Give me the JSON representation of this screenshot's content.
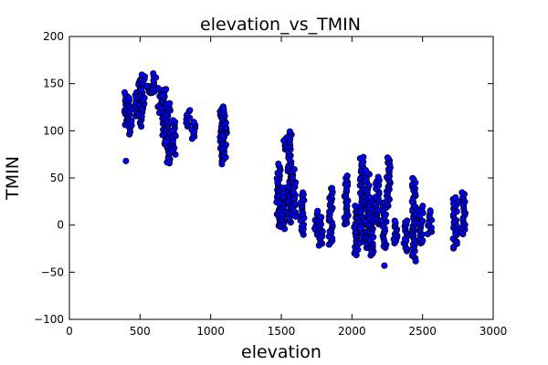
{
  "chart_data": {
    "type": "scatter",
    "title": "elevation_vs_TMIN",
    "xlabel": "elevation",
    "ylabel": "TMIN",
    "xlim": [
      0,
      3000
    ],
    "ylim": [
      -100,
      200
    ],
    "xticks": [
      0,
      500,
      1000,
      1500,
      2000,
      2500,
      3000
    ],
    "yticks": [
      -100,
      -50,
      0,
      50,
      100,
      150,
      200
    ],
    "grid": false,
    "marker_color": "#0000ff",
    "marker_edge_color": "#000000",
    "clusters": [
      {
        "x": 400,
        "ymin": 106,
        "ymax": 140,
        "extra": [
          68
        ]
      },
      {
        "x": 430,
        "ymin": 97,
        "ymax": 135,
        "extra": []
      },
      {
        "x": 470,
        "ymin": 115,
        "ymax": 140,
        "extra": []
      },
      {
        "x": 500,
        "ymin": 105,
        "ymax": 155,
        "extra": []
      },
      {
        "x": 520,
        "ymin": 120,
        "ymax": 160,
        "extra": []
      },
      {
        "x": 560,
        "ymin": 140,
        "ymax": 148,
        "extra": []
      },
      {
        "x": 600,
        "ymin": 140,
        "ymax": 160,
        "extra": []
      },
      {
        "x": 640,
        "ymin": 120,
        "ymax": 145,
        "extra": []
      },
      {
        "x": 670,
        "ymin": 85,
        "ymax": 145,
        "extra": []
      },
      {
        "x": 700,
        "ymin": 65,
        "ymax": 130,
        "extra": []
      },
      {
        "x": 740,
        "ymin": 75,
        "ymax": 112,
        "extra": []
      },
      {
        "x": 840,
        "ymin": 105,
        "ymax": 122,
        "extra": []
      },
      {
        "x": 880,
        "ymin": 92,
        "ymax": 110,
        "extra": []
      },
      {
        "x": 1080,
        "ymin": 65,
        "ymax": 125,
        "extra": []
      },
      {
        "x": 1100,
        "ymin": 72,
        "ymax": 122,
        "extra": []
      },
      {
        "x": 1480,
        "ymin": 0,
        "ymax": 65,
        "extra": []
      },
      {
        "x": 1510,
        "ymin": -5,
        "ymax": 40,
        "extra": []
      },
      {
        "x": 1530,
        "ymin": 80,
        "ymax": 93,
        "extra": []
      },
      {
        "x": 1560,
        "ymin": 2,
        "ymax": 100,
        "extra": []
      },
      {
        "x": 1590,
        "ymin": 10,
        "ymax": 60,
        "extra": []
      },
      {
        "x": 1650,
        "ymin": -10,
        "ymax": 35,
        "extra": []
      },
      {
        "x": 1750,
        "ymin": -10,
        "ymax": 15,
        "extra": []
      },
      {
        "x": 1780,
        "ymin": -22,
        "ymax": 8,
        "extra": []
      },
      {
        "x": 1850,
        "ymin": -20,
        "ymax": 40,
        "extra": []
      },
      {
        "x": 1960,
        "ymin": 0,
        "ymax": 52,
        "extra": []
      },
      {
        "x": 2030,
        "ymin": -32,
        "ymax": 20,
        "extra": []
      },
      {
        "x": 2070,
        "ymin": -18,
        "ymax": 72,
        "extra": []
      },
      {
        "x": 2110,
        "ymin": -25,
        "ymax": 58,
        "extra": []
      },
      {
        "x": 2140,
        "ymin": -33,
        "ymax": 30,
        "extra": []
      },
      {
        "x": 2180,
        "ymin": 0,
        "ymax": 50,
        "extra": []
      },
      {
        "x": 2230,
        "ymin": -25,
        "ymax": 25,
        "extra": [
          -43
        ]
      },
      {
        "x": 2260,
        "ymin": 20,
        "ymax": 72,
        "extra": []
      },
      {
        "x": 2310,
        "ymin": -20,
        "ymax": 5,
        "extra": []
      },
      {
        "x": 2380,
        "ymin": -28,
        "ymax": 5,
        "extra": []
      },
      {
        "x": 2440,
        "ymin": -38,
        "ymax": 50,
        "extra": []
      },
      {
        "x": 2490,
        "ymin": -20,
        "ymax": 20,
        "extra": []
      },
      {
        "x": 2550,
        "ymin": -10,
        "ymax": 15,
        "extra": []
      },
      {
        "x": 2730,
        "ymin": -25,
        "ymax": 30,
        "extra": []
      },
      {
        "x": 2790,
        "ymin": -10,
        "ymax": 35,
        "extra": []
      }
    ]
  }
}
